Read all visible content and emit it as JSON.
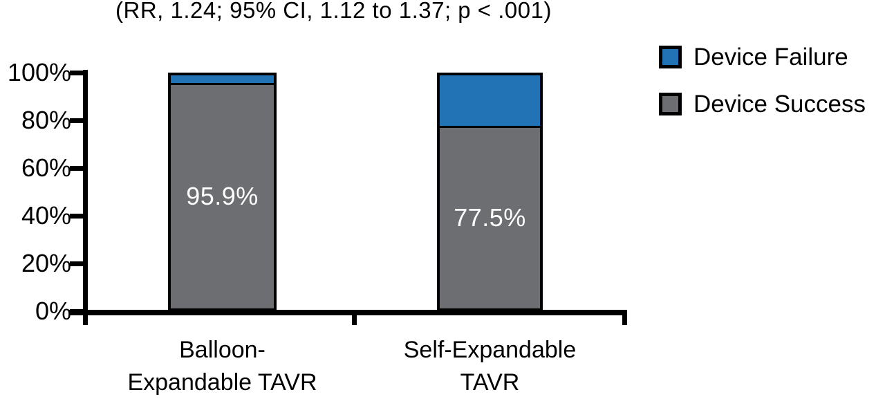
{
  "chart_data": {
    "type": "bar",
    "stacked": true,
    "title": "(RR, 1.24; 95% CI, 1.12 to 1.37; p < .001)",
    "categories": [
      "Balloon-\nExpandable TAVR",
      "Self-Expandable\nTAVR"
    ],
    "series": [
      {
        "name": "Device Failure",
        "values": [
          4.1,
          22.5
        ],
        "color": "#2173B6"
      },
      {
        "name": "Device Success",
        "values": [
          95.9,
          77.5
        ],
        "color": "#6D6E71"
      }
    ],
    "stack_order": "top-to-bottom",
    "bar_labels": [
      "95.9%",
      "77.5%"
    ],
    "bar_label_color": "#FFFFFF",
    "yticks": [
      "0%",
      "20%",
      "40%",
      "60%",
      "80%",
      "100%"
    ],
    "ylim": [
      0,
      100
    ],
    "xlabel": "",
    "ylabel": "",
    "grid": false,
    "legend_position": "right",
    "axis_color": "#000000"
  }
}
